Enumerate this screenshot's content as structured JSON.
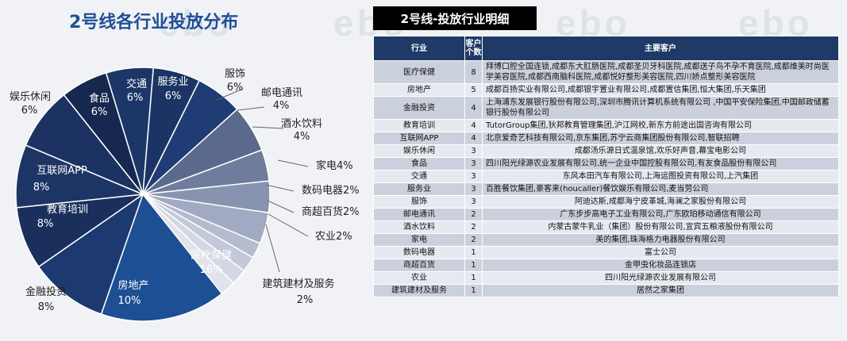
{
  "watermark": [
    "ebo",
    "ebo",
    "ebo",
    "ebo"
  ],
  "title": "2号线各行业投放分布",
  "chart_data": {
    "type": "pie",
    "title": "2号线各行业投放分布",
    "slices": [
      {
        "label": "服务业",
        "value": 6,
        "display": "6%",
        "color": "#1f3c74"
      },
      {
        "label": "服饰",
        "value": 6,
        "display": "6%",
        "color": "#5b6a8c"
      },
      {
        "label": "邮电通讯",
        "value": 4,
        "display": "4%",
        "color": "#6f7c9c"
      },
      {
        "label": "酒水饮料",
        "value": 4,
        "display": "4%",
        "color": "#8893b0"
      },
      {
        "label": "家电",
        "value": 4,
        "display": "4%",
        "color": "#a1aac2"
      },
      {
        "label": "数码电器",
        "value": 2,
        "display": "2%",
        "color": "#b4bccf"
      },
      {
        "label": "商超百货",
        "value": 2,
        "display": "2%",
        "color": "#c3c9d8"
      },
      {
        "label": "农业",
        "value": 2,
        "display": "2%",
        "color": "#d2d7e2"
      },
      {
        "label": "建筑建材及服务",
        "value": 2,
        "display": "2%",
        "color": "#e0e3ea"
      },
      {
        "label": "医疗保健",
        "value": 16,
        "display": "16%",
        "color": "#1c4f93"
      },
      {
        "label": "房地产",
        "value": 10,
        "display": "10%",
        "color": "#1c3a6f"
      },
      {
        "label": "金融投资",
        "value": 8,
        "display": "8%",
        "color": "#1a2f5c"
      },
      {
        "label": "教育培训",
        "value": 8,
        "display": "8%",
        "color": "#1d3565"
      },
      {
        "label": "互联网APP",
        "value": 8,
        "display": "8%",
        "color": "#1b3262"
      },
      {
        "label": "娱乐休闲",
        "value": 6,
        "display": "6%",
        "color": "#16284f"
      },
      {
        "label": "食品",
        "value": 6,
        "display": "6%",
        "color": "#1d3668"
      },
      {
        "label": "交通",
        "value": 6,
        "display": "6%",
        "color": "#1b3464"
      }
    ]
  },
  "detail": {
    "title": "2号线-投放行业明细",
    "columns": [
      "行业",
      "客户个数",
      "主要客户"
    ],
    "rows": [
      {
        "industry": "医疗保健",
        "count": "8",
        "clients": "拜博口腔全国连锁,成都东大肛肠医院,成都圣贝牙科医院,成都送子鸟不孕不育医院,成都维美时尚医学美容医院,成都西南脑科医院,成都悦好整形美容医院,四川娇点整形美容医院"
      },
      {
        "industry": "房地产",
        "count": "5",
        "clients": "成都百扬实业有限公司,成都银宇置业有限公司,成都置信集团,恒大集团,乐天集团"
      },
      {
        "industry": "金融投资",
        "count": "4",
        "clients": "上海浦东发展银行股份有限公司,深圳市腾讯计算机系统有限公司 ,中国平安保险集团,中国邮政储蓄银行股份有限公司"
      },
      {
        "industry": "教育培训",
        "count": "4",
        "clients": "TutorGroup集团,狄邦教育管理集团,沪江网校,新东方前途出国咨询有限公司"
      },
      {
        "industry": "互联网APP",
        "count": "4",
        "clients": "北京爱奇艺科技有限公司,京东集团,苏宁云商集团股份有限公司,智联招聘"
      },
      {
        "industry": "娱乐休闲",
        "count": "3",
        "clients": "成都汤乐源日式温泉馆,欢乐好声音,幕宝电影公司"
      },
      {
        "industry": "食品",
        "count": "3",
        "clients": "四川阳光绿源农业发展有限公司,统一企业中国控股有限公司,有友食品股份有限公司"
      },
      {
        "industry": "交通",
        "count": "3",
        "clients": "东风本田汽车有限公司,上海运图投资有限公司,上汽集团"
      },
      {
        "industry": "服务业",
        "count": "3",
        "clients": "百胜餐饮集团,豪客来(houcaller)餐饮娱乐有限公司,麦当劳公司"
      },
      {
        "industry": "服饰",
        "count": "3",
        "clients": "阿迪达斯,成都海宁皮革城,海澜之家股份有限公司"
      },
      {
        "industry": "邮电通讯",
        "count": "2",
        "clients": "广东步步高电子工业有限公司,广东欧珀移动通信有限公司"
      },
      {
        "industry": "酒水饮料",
        "count": "2",
        "clients": "内蒙古蒙牛乳业（集团）股份有限公司,宜宾五粮液股份有限公司"
      },
      {
        "industry": "家电",
        "count": "2",
        "clients": "美的集团,珠海格力电器股份有限公司"
      },
      {
        "industry": "数码电器",
        "count": "1",
        "clients": "富士公司"
      },
      {
        "industry": "商超百货",
        "count": "1",
        "clients": "金甲虫化妆品连锁店"
      },
      {
        "industry": "农业",
        "count": "1",
        "clients": "四川阳光绿源农业发展有限公司"
      },
      {
        "industry": "建筑建材及服务",
        "count": "1",
        "clients": "居然之家集团"
      }
    ]
  }
}
